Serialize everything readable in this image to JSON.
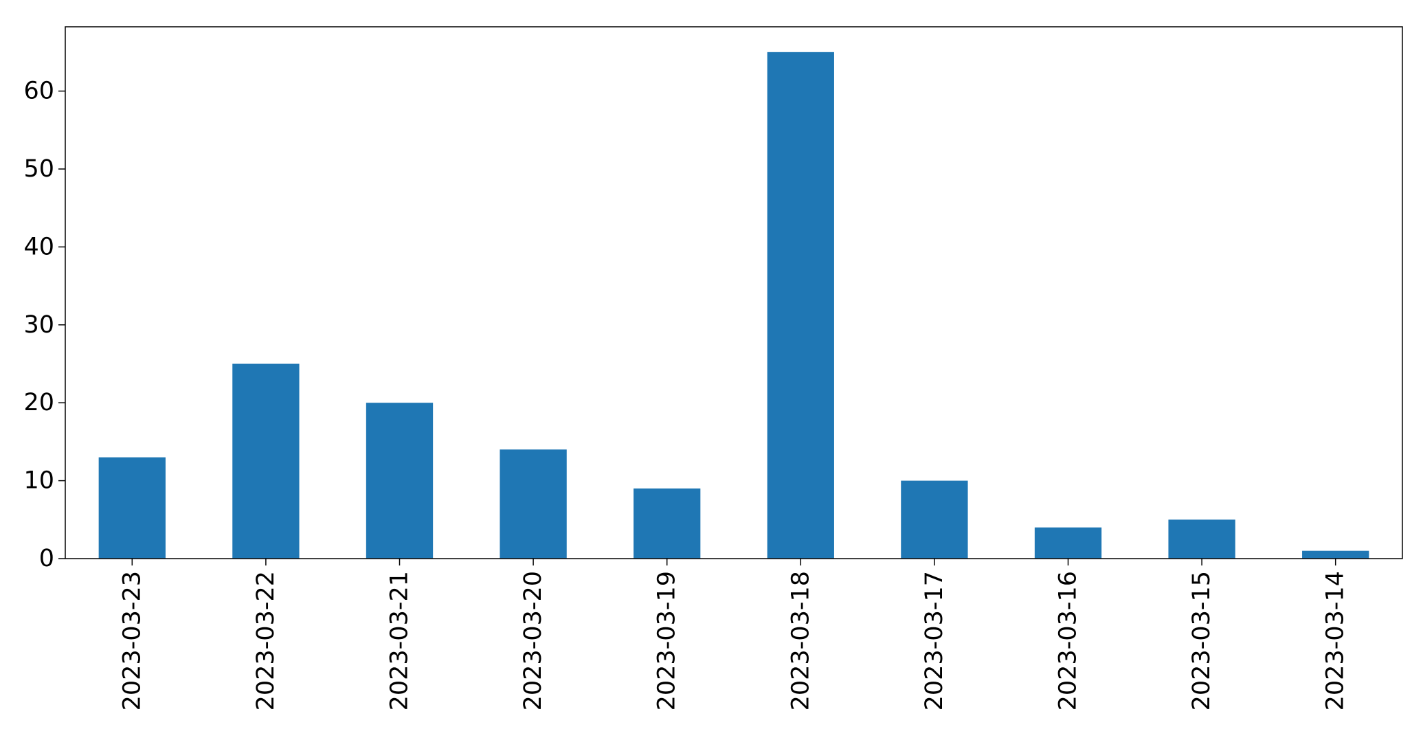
{
  "chart_data": {
    "type": "bar",
    "title": "",
    "xlabel": "",
    "ylabel": "",
    "categories": [
      "2023-03-23",
      "2023-03-22",
      "2023-03-21",
      "2023-03-20",
      "2023-03-19",
      "2023-03-18",
      "2023-03-17",
      "2023-03-16",
      "2023-03-15",
      "2023-03-14"
    ],
    "values": [
      13,
      25,
      20,
      14,
      9,
      65,
      10,
      4,
      5,
      1
    ],
    "ylim": [
      0,
      68.25
    ],
    "yticks": [
      0,
      10,
      20,
      30,
      40,
      50,
      60
    ],
    "bar_color": "#1f77b4",
    "grid": false,
    "legend": "none"
  }
}
